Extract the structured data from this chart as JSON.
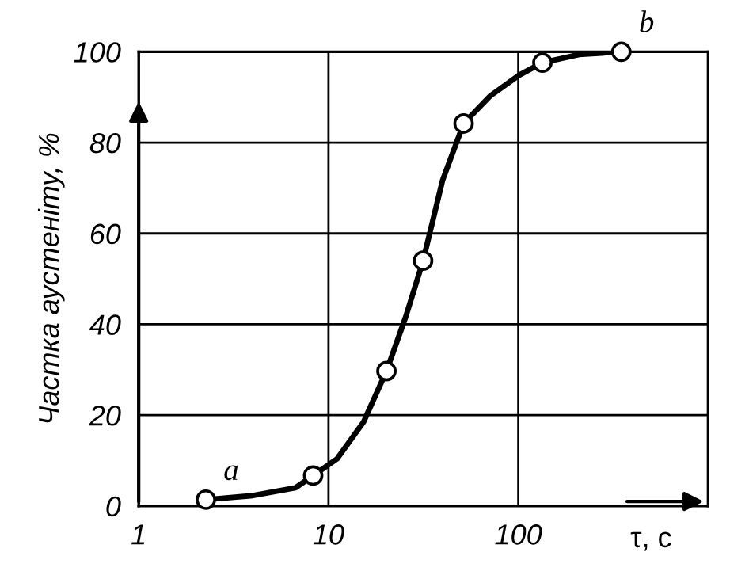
{
  "chart_data": {
    "type": "line",
    "xlabel": "τ, с",
    "ylabel": "Частка аустеніту, %",
    "log": "x",
    "xlim": [
      1,
      1000
    ],
    "xticks": [
      1,
      10,
      100
    ],
    "ylim": [
      0,
      100
    ],
    "yticks": [
      0,
      20,
      40,
      60,
      80,
      100
    ],
    "grid": true,
    "line_style": "solid",
    "series": [
      {
        "color": "#000000",
        "marker": "none",
        "x": [
          2.26,
          4.0,
          6.7,
          8.3,
          11.1,
          15.3,
          20.2,
          25.5,
          31.5,
          39.9,
          51.5,
          70.8,
          100.7,
          134,
          209,
          349
        ],
        "values": [
          1.4,
          2.3,
          4,
          6.7,
          10.4,
          18.5,
          29.7,
          41.6,
          54,
          71.7,
          84.2,
          90.2,
          94.8,
          97.6,
          99.4,
          100
        ]
      },
      {
        "type": "scatter",
        "color": "#000000",
        "marker": "circle",
        "x": [
          2.26,
          8.3,
          20.2,
          31.5,
          51.5,
          134,
          349
        ],
        "values": [
          1.4,
          6.7,
          29.7,
          54,
          84.2,
          97.6,
          100
        ]
      }
    ],
    "annotations": [
      {
        "text": "a",
        "x": 2.26,
        "y": 1.4
      },
      {
        "text": "b",
        "x": 349,
        "y": 100
      }
    ]
  }
}
